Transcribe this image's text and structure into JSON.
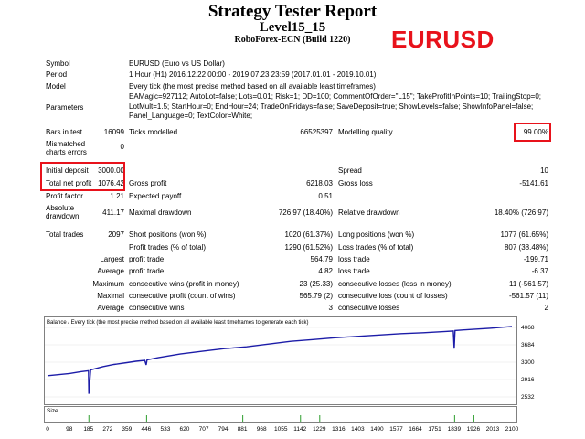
{
  "report": {
    "title": "Strategy Tester Report",
    "subtitle": "Level15_15",
    "broker": "RoboForex-ECN (Build 1220)",
    "symbol_overlay": "EURUSD",
    "highlight_color": "#e8121b"
  },
  "rows": {
    "symbol_label": "Symbol",
    "symbol_value": "EURUSD (Euro vs US Dollar)",
    "period_label": "Period",
    "period_value": "1 Hour (H1) 2016.12.22 00:00 - 2019.07.23 23:59 (2017.01.01 - 2019.10.01)",
    "model_label": "Model",
    "model_value": "Every tick (the most precise method based on all available least timeframes)",
    "parameters_label": "Parameters",
    "parameters_line1": "EAMagic=927112; AutoLot=false; Lots=0.01; Risk=1; DD=100; CommentOfOrder=\"L15\"; TakeProfitInPoints=10; TrailingStop=0;",
    "parameters_line2": "LotMult=1.5; StartHour=0; EndHour=24; TradeOnFridays=false; SaveDeposit=true; ShowLevels=false; ShowInfoPanel=false;",
    "parameters_line3": "Panel_Language=0; TextColor=White;",
    "bars_label": "Bars in test",
    "bars_value": "16099",
    "ticks_label": "Ticks modelled",
    "ticks_value": "66525397",
    "quality_label": "Modelling quality",
    "quality_value": "99.00%",
    "mismatch_label1": "Mismatched",
    "mismatch_label2": "charts errors",
    "mismatch_value": "0",
    "deposit_label": "Initial deposit",
    "deposit_value": "3000.00",
    "spread_label": "Spread",
    "spread_value": "10",
    "netprofit_label": "Total net profit",
    "netprofit_value": "1076.42",
    "grossprofit_label": "Gross profit",
    "grossprofit_value": "6218.03",
    "grossloss_label": "Gross loss",
    "grossloss_value": "-5141.61",
    "pf_label": "Profit factor",
    "pf_value": "1.21",
    "payoff_label": "Expected payoff",
    "payoff_value": "0.51",
    "absdd_label1": "Absolute",
    "absdd_label2": "drawdown",
    "absdd_value": "411.17",
    "maxdd_label": "Maximal drawdown",
    "maxdd_value": "726.97 (18.40%)",
    "reldd_label": "Relative drawdown",
    "reldd_value": "18.40% (726.97)",
    "trades_label": "Total trades",
    "trades_value": "2097",
    "short_label": "Short positions (won %)",
    "short_value": "1020 (61.37%)",
    "long_label": "Long positions (won %)",
    "long_value": "1077 (61.65%)",
    "profit_trades_label": "Profit trades (% of total)",
    "profit_trades_value": "1290 (61.52%)",
    "loss_trades_label": "Loss trades (% of total)",
    "loss_trades_value": "807 (38.48%)",
    "largest_label": "Largest",
    "largest_profit_label": "profit trade",
    "largest_profit_value": "564.79",
    "largest_loss_label": "loss trade",
    "largest_loss_value": "-199.71",
    "average_label": "Average",
    "average_profit_label": "profit trade",
    "average_profit_value": "4.82",
    "average_loss_label": "loss trade",
    "average_loss_value": "-6.37",
    "maximum_label": "Maximum",
    "max_wins_label": "consecutive wins (profit in money)",
    "max_wins_value": "23 (25.33)",
    "max_losses_label": "consecutive losses (loss in money)",
    "max_losses_value": "11 (-561.57)",
    "maximal_label": "Maximal",
    "maximal_profit_label": "consecutive profit (count of wins)",
    "maximal_profit_value": "565.79 (2)",
    "maximal_loss_label": "consecutive loss (count of losses)",
    "maximal_loss_value": "-561.57 (11)",
    "avg_cons_label": "Average",
    "avg_wins_label": "consecutive wins",
    "avg_wins_value": "3",
    "avg_losses_label": "consecutive losses",
    "avg_losses_value": "2"
  },
  "chart": {
    "header": "Balance / Every tick (the most precise method based on all available least timeframes to generate each tick)",
    "size_label": "Size",
    "line_color": "#1c1ca8",
    "size_bar_color": "#2e9e2e"
  },
  "chart_data": {
    "type": "line",
    "title": "Balance / Every tick (the most precise method based on all available least timeframes to generate each tick)",
    "x_ticks": [
      "0",
      "98",
      "185",
      "272",
      "359",
      "446",
      "533",
      "620",
      "707",
      "794",
      "881",
      "968",
      "1055",
      "1142",
      "1229",
      "1316",
      "1403",
      "1490",
      "1577",
      "1664",
      "1751",
      "1839",
      "1926",
      "2013",
      "2100"
    ],
    "y_ticks": [
      "4068",
      "3684",
      "3300",
      "2916",
      "2532"
    ],
    "ylim": [
      2532,
      4068
    ],
    "xlim": [
      0,
      2100
    ],
    "series": [
      {
        "x": [
          0,
          100,
          150,
          185,
          187,
          195,
          250,
          300,
          359,
          400,
          440,
          446,
          450,
          500,
          600,
          700,
          800,
          900,
          1000,
          1100,
          1200,
          1300,
          1400,
          1500,
          1600,
          1700,
          1800,
          1835,
          1839,
          1843,
          1900,
          2000,
          2100
        ],
        "y": [
          3000,
          3050,
          3090,
          3110,
          2600,
          3130,
          3200,
          3250,
          3290,
          3320,
          3340,
          3240,
          3350,
          3400,
          3480,
          3540,
          3600,
          3640,
          3700,
          3760,
          3800,
          3840,
          3870,
          3900,
          3930,
          3950,
          3980,
          3990,
          3600,
          4000,
          4020,
          4050,
          4090
        ]
      }
    ],
    "size_bars_x": [
      185,
      446,
      881,
      1142,
      1229,
      1839,
      1926
    ]
  }
}
